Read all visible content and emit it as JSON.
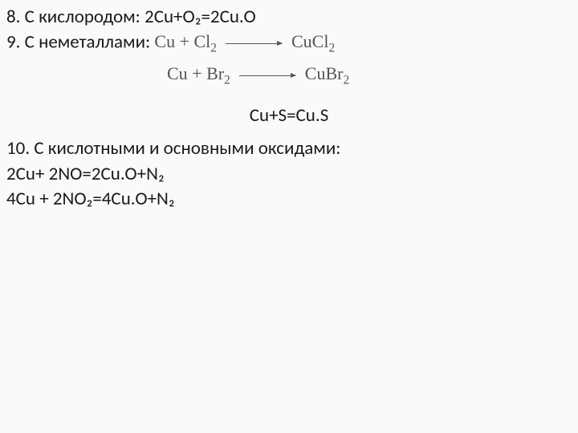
{
  "line8_label": "8. С кислородом: ",
  "line8_eq": "2Cu+O₂=2Cu.O",
  "line9_label": "9. С неметаллами: ",
  "img_eq1_left": "Cu + Cl",
  "img_eq1_right": "CuCl",
  "img_eq2_left": "Cu + Br",
  "img_eq2_right": "CuBr",
  "center_eq": "Cu+S=Cu.S",
  "line10": "10. С кислотными и основными оксидами:",
  "eq_a": "2Cu+ 2NO=2Cu.O+N₂",
  "eq_b": "4Cu + 2NO₂=4Cu.O+N₂",
  "sub2": "2"
}
